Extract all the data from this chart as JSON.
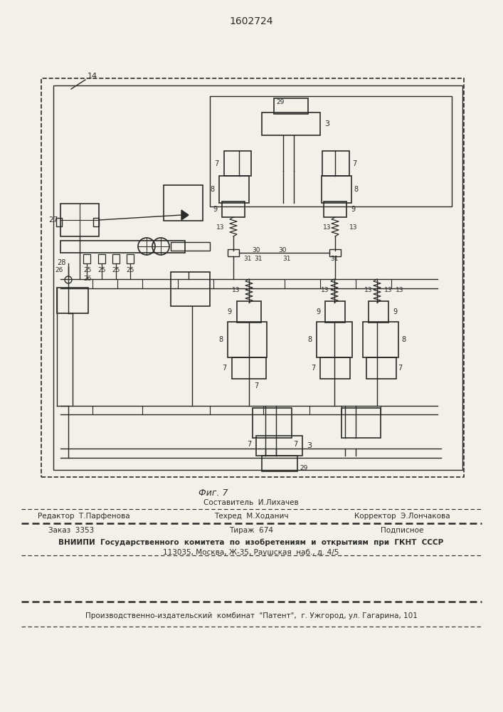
{
  "title": "1602724",
  "fig_label": "Фиг. 7",
  "bg_color": "#f2f0e8",
  "line_color": "#2a2a2a",
  "footer": {
    "sestavitel": "Составитель  И.Лихачев",
    "redaktor": "Редактор  Т.Парфенова",
    "tehred": "Техред  М.Ходанич",
    "korrektor": "Корректор  Э.Лончакова",
    "zakaz": "Заказ  3353",
    "tirazh": "Тираж  674",
    "podpisnoe": "Подписное",
    "vniipи": "ВНИИПИ  Государственного  комитета  по  изобретениям  и  открытиям  при  ГКНТ  СССР",
    "address": "113035, Москва, Ж-35, Раушская  наб., д. 4/5",
    "kombinat": "Производственно-издательский  комбинат  \"Патент\",  г. Ужгород, ул. Гагарина, 101"
  }
}
